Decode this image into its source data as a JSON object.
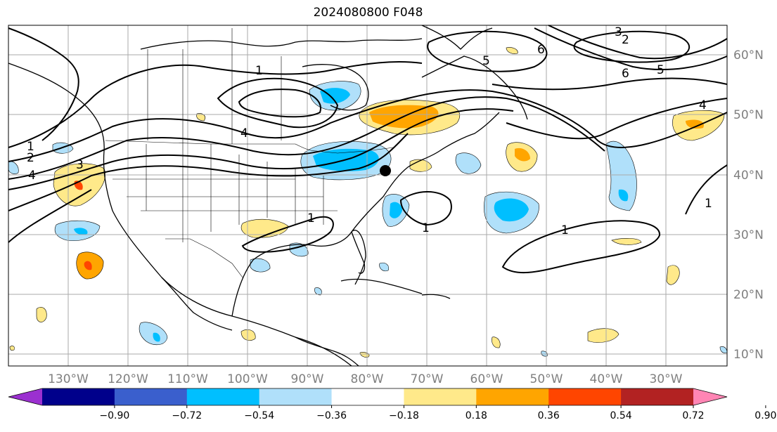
{
  "title": "2024080800 F048",
  "lon_labels": [
    "130°W",
    "120°W",
    "110°W",
    "100°W",
    "90°W",
    "80°W",
    "70°W",
    "60°W",
    "50°W",
    "40°W",
    "30°W"
  ],
  "lat_labels": [
    "60°N",
    "50°N",
    "40°N",
    "30°N",
    "20°N",
    "10°N"
  ],
  "colorbar": {
    "tick_labels": [
      "−0.90",
      "−0.72",
      "−0.54",
      "−0.36",
      "−0.18",
      "0.18",
      "0.36",
      "0.54",
      "0.72",
      "0.90"
    ],
    "colors": [
      "#9b30d0",
      "#00008b",
      "#3a5fcd",
      "#00bfff",
      "#b0e0fa",
      "#ffffff",
      "#ffe98a",
      "#ffa500",
      "#ff4500",
      "#b22222",
      "#ff85b4"
    ]
  },
  "contour_labels": [
    "1",
    "2",
    "3",
    "4",
    "5",
    "6"
  ],
  "colors": {
    "pos_light": "#ffe98a",
    "pos_mid": "#ffa500",
    "pos_strong": "#ff4500",
    "neg_light": "#b0e0fa",
    "neg_mid": "#00bfff",
    "neg_strong": "#3a5fcd",
    "grid": "#aaaaaa",
    "tick_text": "#7f7f7f"
  }
}
